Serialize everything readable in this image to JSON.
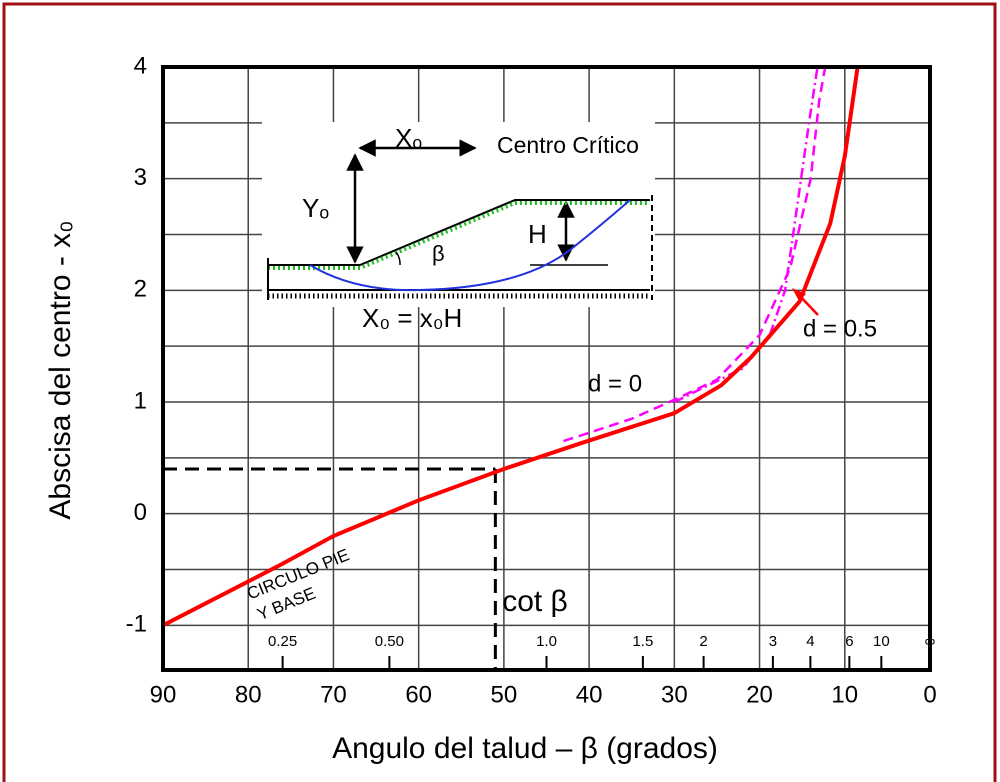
{
  "chart_data": {
    "type": "line",
    "xlabel": "Angulo del talud – β (grados)",
    "ylabel": "Abscisa del centro - x₀",
    "xlim": [
      90,
      0
    ],
    "ylim": [
      -1.4,
      4
    ],
    "xticks": [
      90,
      80,
      70,
      60,
      50,
      40,
      30,
      20,
      10,
      0
    ],
    "yticks": [
      -1,
      0,
      1,
      2,
      3,
      4
    ],
    "yminor": [
      -0.5,
      0.5,
      1.5,
      2.5,
      3.5
    ],
    "grid": true,
    "series": [
      {
        "name": "d = 0.5",
        "color": "#ff0000",
        "style": "solid",
        "x": [
          90,
          76,
          70,
          60,
          50,
          41,
          30,
          24.5,
          21,
          15.3,
          11.7,
          10,
          8.5
        ],
        "values": [
          -1,
          -0.45,
          -0.2,
          0.12,
          0.4,
          0.63,
          0.9,
          1.15,
          1.4,
          1.9,
          2.6,
          3.2,
          4
        ]
      },
      {
        "name": "d = 0",
        "color": "#ff00ff",
        "style": "dashed",
        "x": [
          43,
          35,
          30,
          25,
          20,
          16.4,
          14,
          13,
          12.3
        ],
        "values": [
          0.65,
          0.85,
          1.02,
          1.2,
          1.6,
          2.2,
          3,
          3.7,
          4
        ]
      },
      {
        "color": "#ff00ff",
        "style": "dashdot",
        "x": [
          30,
          22,
          18.8,
          17,
          15.5,
          14.2,
          13.2
        ],
        "values": [
          1.0,
          1.3,
          1.6,
          2.0,
          2.8,
          3.5,
          4
        ]
      }
    ],
    "reference": {
      "x": 51,
      "y": 0.4
    },
    "cot_axis": {
      "label": "cot β",
      "ticks": [
        0.25,
        {
          "value": 0.5,
          "label": "0.50"
        },
        {
          "value": 1,
          "label": "1.0"
        },
        1.5,
        2,
        3,
        4,
        6,
        10,
        {
          "value": null,
          "label": "∞"
        }
      ]
    },
    "annotations": [
      "CIRCULO PIE",
      "Y BASE"
    ],
    "inset": {
      "xo": "Xₒ",
      "title": "Centro Crítico",
      "yo": "Yₒ",
      "h": "H",
      "beta": "β",
      "formula": "X₀ = x₀H"
    }
  }
}
